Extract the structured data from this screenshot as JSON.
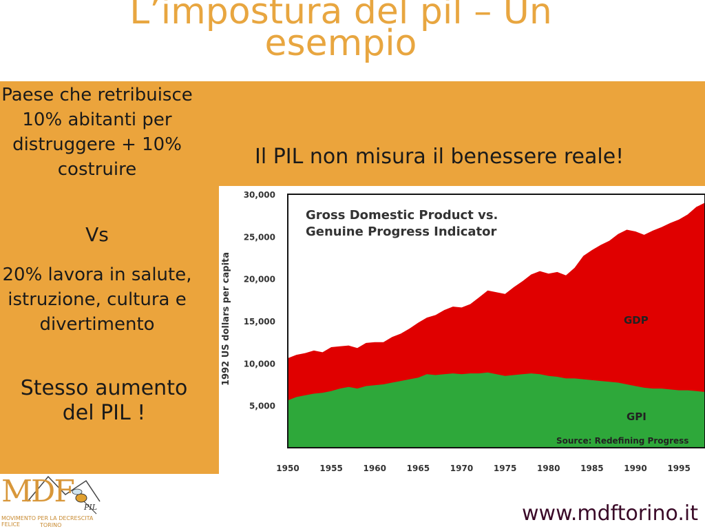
{
  "slide": {
    "title": "L’impostura del pil – Un esempio",
    "subtitle": "Il PIL non misura il benessere reale!",
    "left_panel": {
      "block1": "Paese che retribuisce 10% abitanti per distruggere + 10% costruire",
      "block2": "Vs",
      "block3": "20% lavora in salute, istruzione, cultura e divertimento",
      "block4": "Stesso aumento del PIL !"
    },
    "footer_url": "www.mdftorino.it",
    "logo": {
      "text": "MDF",
      "sub1": "MOVIMENTO PER LA DECRESCITA FELICE",
      "sub2": "TORINO",
      "pil": "PIL"
    },
    "colors": {
      "orange": "#eba43c",
      "gdp": "#e00000",
      "gpi": "#2ea83a"
    }
  },
  "chart_data": {
    "type": "area",
    "title": "Gross Domestic Product vs. Genuine Progress Indicator",
    "ylabel": "1992 US dollars per capita",
    "source": "Source:  Redefining Progress",
    "ylim": [
      0,
      30000
    ],
    "xlim": [
      1950,
      1998
    ],
    "y_ticks": [
      "30,000",
      "25,000",
      "20,000",
      "15,000",
      "10,000",
      "5,000"
    ],
    "x_ticks": [
      "1950",
      "1955",
      "1960",
      "1965",
      "1970",
      "1975",
      "1980",
      "1985",
      "1990",
      "1995"
    ],
    "x": [
      1950,
      1951,
      1952,
      1953,
      1954,
      1955,
      1956,
      1957,
      1958,
      1959,
      1960,
      1961,
      1962,
      1963,
      1964,
      1965,
      1966,
      1967,
      1968,
      1969,
      1970,
      1971,
      1972,
      1973,
      1974,
      1975,
      1976,
      1977,
      1978,
      1979,
      1980,
      1981,
      1982,
      1983,
      1984,
      1985,
      1986,
      1987,
      1988,
      1989,
      1990,
      1991,
      1992,
      1993,
      1994,
      1995,
      1996,
      1997,
      1998
    ],
    "series": [
      {
        "name": "GDP",
        "values": [
          10600,
          11000,
          11200,
          11500,
          11300,
          11900,
          12000,
          12100,
          11800,
          12400,
          12500,
          12500,
          13100,
          13500,
          14100,
          14800,
          15400,
          15700,
          16300,
          16700,
          16600,
          17000,
          17800,
          18600,
          18400,
          18200,
          19000,
          19700,
          20500,
          20900,
          20600,
          20800,
          20400,
          21300,
          22700,
          23400,
          24000,
          24500,
          25300,
          25800,
          25600,
          25200,
          25700,
          26100,
          26600,
          27000,
          27600,
          28500,
          29000
        ]
      },
      {
        "name": "GPI",
        "values": [
          5600,
          6000,
          6200,
          6400,
          6500,
          6700,
          7000,
          7200,
          7000,
          7300,
          7400,
          7500,
          7700,
          7900,
          8100,
          8300,
          8700,
          8600,
          8700,
          8800,
          8700,
          8800,
          8800,
          8900,
          8700,
          8500,
          8600,
          8700,
          8800,
          8700,
          8500,
          8400,
          8200,
          8200,
          8100,
          8000,
          7900,
          7800,
          7700,
          7500,
          7300,
          7100,
          7000,
          7000,
          6900,
          6800,
          6800,
          6700,
          6600
        ]
      }
    ]
  }
}
